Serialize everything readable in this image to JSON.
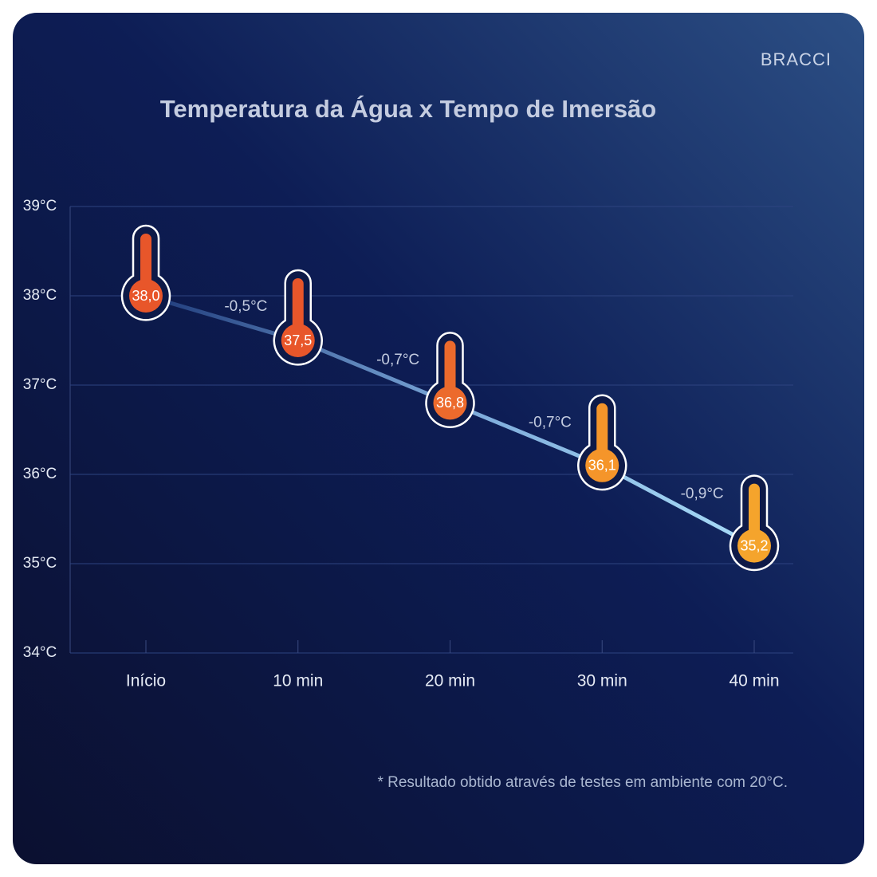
{
  "brand": "BRACCI",
  "footnote": "* Resultado obtido através de testes em ambiente com 20°C.",
  "chart_data": {
    "type": "line",
    "title": "Temperatura da Água x Tempo de Imersão",
    "categories": [
      "Início",
      "10 min",
      "20 min",
      "30 min",
      "40 min"
    ],
    "values": [
      38.0,
      37.5,
      36.8,
      36.1,
      35.2
    ],
    "value_labels": [
      "38,0",
      "37,5",
      "36,8",
      "36,1",
      "35,2"
    ],
    "colors": [
      "#e8562a",
      "#e8562a",
      "#ec6a2c",
      "#f5952a",
      "#f5a42c"
    ],
    "annotations": [
      "-0,5°C",
      "-0,7°C",
      "-0,7°C",
      "-0,9°C"
    ],
    "ylim": [
      34,
      39
    ],
    "yticks": [
      {
        "value": 34,
        "label": "34°C"
      },
      {
        "value": 35,
        "label": "35°C"
      },
      {
        "value": 36,
        "label": "36°C"
      },
      {
        "value": 37,
        "label": "37°C"
      },
      {
        "value": 38,
        "label": "38°C"
      },
      {
        "value": 39,
        "label": "39°C"
      }
    ],
    "grid": true
  }
}
